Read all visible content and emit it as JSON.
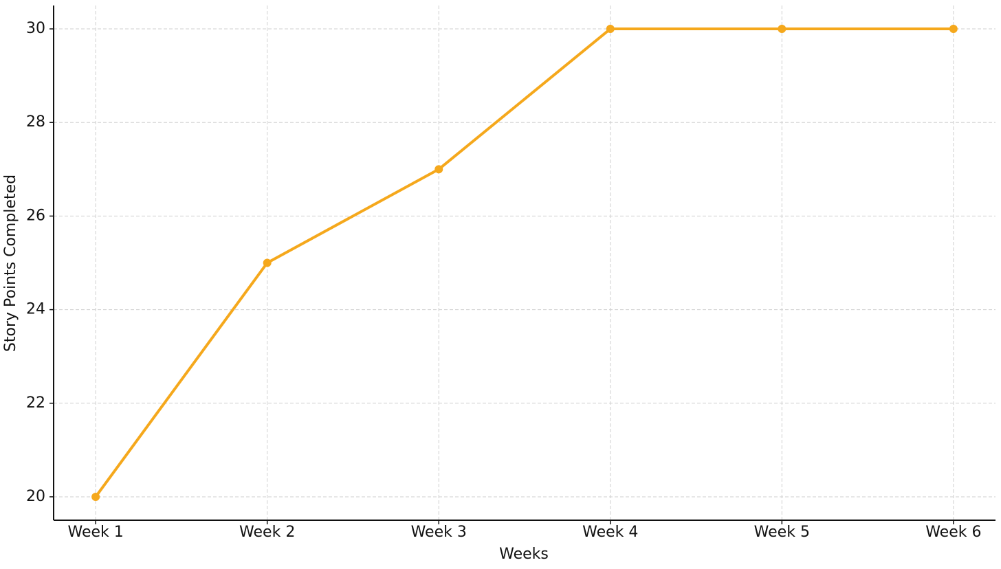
{
  "chart_data": {
    "type": "line",
    "x_label": "Weeks",
    "y_label": "Story Points Completed",
    "categories": [
      "Week 1",
      "Week 2",
      "Week 3",
      "Week 4",
      "Week 5",
      "Week 6"
    ],
    "series": [
      {
        "name": "Story Points Completed",
        "color": "#f5a81c",
        "values": [
          20,
          25,
          27,
          30,
          30,
          30
        ]
      }
    ],
    "ylim": [
      19.5,
      30.5
    ],
    "yticks": [
      20,
      22,
      24,
      26,
      28,
      30
    ],
    "grid": true
  }
}
